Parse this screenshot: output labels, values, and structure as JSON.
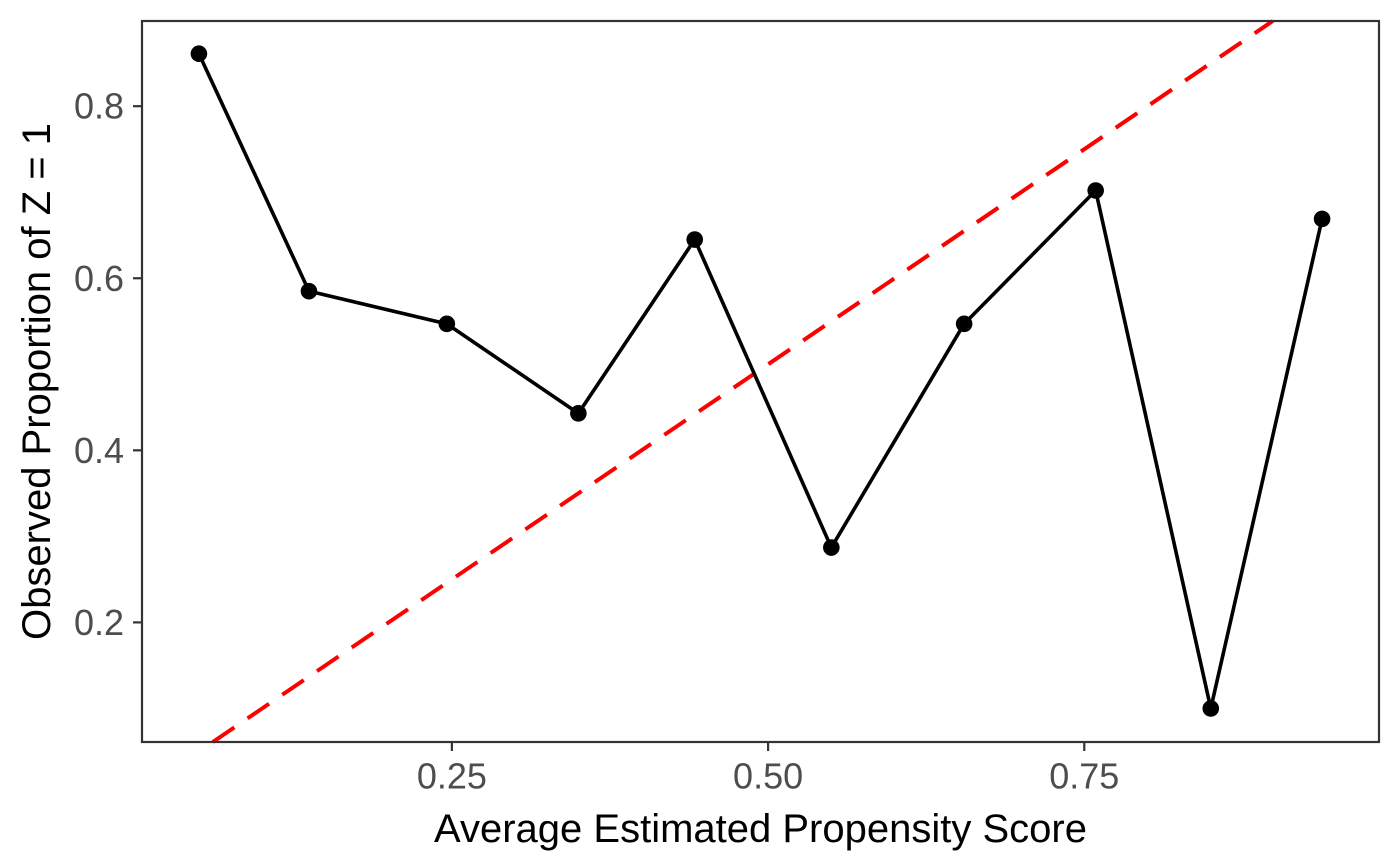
{
  "figure": {
    "background_color": "#ffffff",
    "panel_border_color": "#333333",
    "axis_text_color": "#4d4d4d",
    "axis_title_color": "#000000"
  },
  "chart_data": {
    "type": "line",
    "title": "",
    "xlabel": "Average Estimated Propensity Score",
    "ylabel": "Observed Proportion of Z = 1",
    "xlim": [
      0.005,
      0.983
    ],
    "ylim": [
      0.061,
      0.899
    ],
    "x_ticks": {
      "values": [
        0.25,
        0.5,
        0.75
      ],
      "labels": [
        "0.25",
        "0.50",
        "0.75"
      ]
    },
    "y_ticks": {
      "values": [
        0.2,
        0.4,
        0.6,
        0.8
      ],
      "labels": [
        "0.2",
        "0.4",
        "0.6",
        "0.8"
      ]
    },
    "grid": false,
    "legend": "none",
    "series": [
      {
        "name": "identity-reference-line",
        "description": "y = x reference",
        "type": "line",
        "line_style": "dashed",
        "color": "#FF0000",
        "x": [
          0.061,
          0.899
        ],
        "y": [
          0.061,
          0.899
        ]
      },
      {
        "name": "observed-proportion",
        "type": "line+marker",
        "line_style": "solid",
        "marker": "circle",
        "color": "#000000",
        "x": [
          0.05,
          0.137,
          0.246,
          0.35,
          0.442,
          0.55,
          0.655,
          0.759,
          0.85,
          0.938
        ],
        "y": [
          0.861,
          0.585,
          0.547,
          0.443,
          0.645,
          0.287,
          0.547,
          0.702,
          0.1,
          0.669
        ]
      }
    ]
  }
}
